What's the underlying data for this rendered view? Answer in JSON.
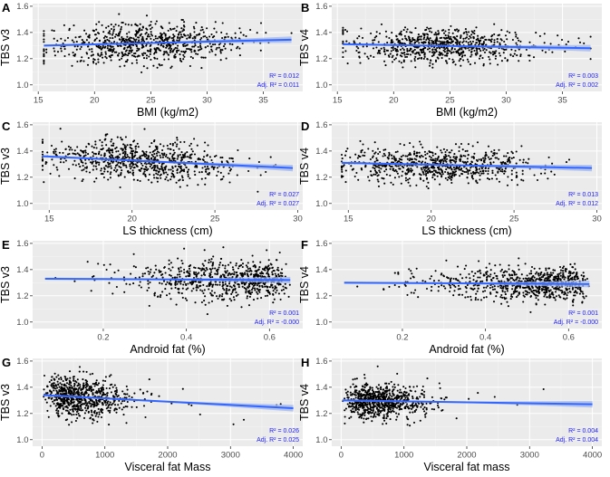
{
  "figure": {
    "colors": {
      "panel_bg": "#ebebeb",
      "grid_major": "#ffffff",
      "grid_minor": "#f4f4f4",
      "point": "#000000",
      "line": "#3366ff",
      "ribbon": "#9fb6f0",
      "annotation": "#1a1aff"
    }
  },
  "chart_data": [
    {
      "panel": "A",
      "type": "scatter",
      "ylabel": "TBS v3",
      "xlabel": "BMI (kg/m2)",
      "xlim": [
        14.5,
        38.5
      ],
      "ylim": [
        0.95,
        1.62
      ],
      "xticks": [
        15,
        20,
        25,
        30,
        35
      ],
      "yticks": [
        1.0,
        1.2,
        1.4,
        1.6
      ],
      "xtick_labels": [
        "15",
        "20",
        "25",
        "30",
        "35"
      ],
      "ytick_labels": [
        "1.0",
        "1.2",
        "1.4",
        "1.6"
      ],
      "fit": {
        "x": [
          15.5,
          37.5
        ],
        "y": [
          1.3,
          1.345
        ]
      },
      "r2": "R² = 0.012",
      "adj_r2": "Adj. R² = 0.011",
      "scatter": {
        "n": 750,
        "x_mean": 24.5,
        "x_sd": 4.2,
        "x_min": 15.5,
        "x_max": 37.5,
        "y_sd": 0.075
      }
    },
    {
      "panel": "B",
      "type": "scatter",
      "ylabel": "TBS v4",
      "xlabel": "BMI (kg/m2)",
      "xlim": [
        14.5,
        38.5
      ],
      "ylim": [
        0.95,
        1.62
      ],
      "xticks": [
        15,
        20,
        25,
        30,
        35
      ],
      "yticks": [
        1.0,
        1.2,
        1.4,
        1.6
      ],
      "xtick_labels": [
        "15",
        "20",
        "25",
        "30",
        "35"
      ],
      "ytick_labels": [
        "1.0",
        "1.2",
        "1.4",
        "1.6"
      ],
      "fit": {
        "x": [
          15.5,
          37.5
        ],
        "y": [
          1.31,
          1.28
        ]
      },
      "r2": "R² = 0.003",
      "adj_r2": "Adj. R² = 0.002",
      "scatter": {
        "n": 750,
        "x_mean": 24.5,
        "x_sd": 4.2,
        "x_min": 15.5,
        "x_max": 37.5,
        "y_sd": 0.065
      }
    },
    {
      "panel": "C",
      "type": "scatter",
      "ylabel": "TBS v3",
      "xlabel": "LS thickness (cm)",
      "xlim": [
        14.0,
        30.3
      ],
      "ylim": [
        0.95,
        1.62
      ],
      "xticks": [
        15,
        20,
        25,
        30
      ],
      "yticks": [
        1.0,
        1.2,
        1.4,
        1.6
      ],
      "xtick_labels": [
        "15",
        "20",
        "25",
        "30"
      ],
      "ytick_labels": [
        "1.0",
        "1.2",
        "1.4",
        "1.6"
      ],
      "fit": {
        "x": [
          14.6,
          29.7
        ],
        "y": [
          1.36,
          1.27
        ]
      },
      "r2": "R² = 0.027",
      "adj_r2": "Adj. R² = 0.027",
      "scatter": {
        "n": 750,
        "x_mean": 20.5,
        "x_sd": 2.8,
        "x_min": 14.6,
        "x_max": 29.7,
        "y_sd": 0.075
      }
    },
    {
      "panel": "D",
      "type": "scatter",
      "ylabel": "TBS v4",
      "xlabel": "LS thickness (cm)",
      "xlim": [
        14.0,
        30.3
      ],
      "ylim": [
        0.95,
        1.62
      ],
      "xticks": [
        15,
        20,
        25,
        30
      ],
      "yticks": [
        1.0,
        1.2,
        1.4,
        1.6
      ],
      "xtick_labels": [
        "15",
        "20",
        "25",
        "30"
      ],
      "ytick_labels": [
        "1.0",
        "1.2",
        "1.4",
        "1.6"
      ],
      "fit": {
        "x": [
          14.6,
          29.7
        ],
        "y": [
          1.31,
          1.27
        ]
      },
      "r2": "R² = 0.013",
      "adj_r2": "Adj. R² = 0.012",
      "scatter": {
        "n": 750,
        "x_mean": 20.5,
        "x_sd": 2.8,
        "x_min": 14.6,
        "x_max": 29.7,
        "y_sd": 0.065
      }
    },
    {
      "panel": "E",
      "type": "scatter",
      "ylabel": "TBS v3",
      "xlabel": "Android fat (%)",
      "xlim": [
        0.03,
        0.68
      ],
      "ylim": [
        0.95,
        1.62
      ],
      "xticks": [
        0.2,
        0.4,
        0.6
      ],
      "yticks": [
        1.0,
        1.2,
        1.4,
        1.6
      ],
      "xtick_labels": [
        "0.2",
        "0.4",
        "0.6"
      ],
      "ytick_labels": [
        "1.0",
        "1.2",
        "1.4",
        "1.6"
      ],
      "fit": {
        "x": [
          0.06,
          0.65
        ],
        "y": [
          1.33,
          1.32
        ]
      },
      "r2": "R² = 0.001",
      "adj_r2": "Adj. R² = -0.000",
      "scatter": {
        "n": 750,
        "x_mean": 0.46,
        "x_sd": 0.11,
        "x_min": 0.06,
        "x_max": 0.65,
        "y_sd": 0.075
      }
    },
    {
      "panel": "F",
      "type": "scatter",
      "ylabel": "TBS v4",
      "xlabel": "Android fat (%)",
      "xlim": [
        0.03,
        0.68
      ],
      "ylim": [
        0.95,
        1.62
      ],
      "xticks": [
        0.2,
        0.4,
        0.6
      ],
      "yticks": [
        1.0,
        1.2,
        1.4,
        1.6
      ],
      "xtick_labels": [
        "0.2",
        "0.4",
        "0.6"
      ],
      "ytick_labels": [
        "1.0",
        "1.2",
        "1.4",
        "1.6"
      ],
      "fit": {
        "x": [
          0.06,
          0.65
        ],
        "y": [
          1.3,
          1.29
        ]
      },
      "r2": "R² = 0.001",
      "adj_r2": "Adj. R² = -0.000",
      "scatter": {
        "n": 750,
        "x_mean": 0.46,
        "x_sd": 0.11,
        "x_min": 0.06,
        "x_max": 0.65,
        "y_sd": 0.065
      }
    },
    {
      "panel": "G",
      "type": "scatter",
      "ylabel": "TBS v3",
      "xlabel": "Visceral fat Mass",
      "xlim": [
        -150,
        4150
      ],
      "ylim": [
        0.95,
        1.62
      ],
      "xticks": [
        0,
        1000,
        2000,
        3000,
        4000
      ],
      "yticks": [
        1.0,
        1.2,
        1.4,
        1.6
      ],
      "xtick_labels": [
        "0",
        "1000",
        "2000",
        "3000",
        "4000"
      ],
      "ytick_labels": [
        "1.0",
        "1.2",
        "1.4",
        "1.6"
      ],
      "fit": {
        "x": [
          20,
          4000
        ],
        "y": [
          1.34,
          1.24
        ]
      },
      "r2": "R² = 0.026",
      "adj_r2": "Adj. R² = 0.025",
      "scatter": {
        "n": 750,
        "x_mean": 700,
        "x_sd": 520,
        "x_min": 20,
        "x_max": 4000,
        "y_sd": 0.075
      }
    },
    {
      "panel": "H",
      "type": "scatter",
      "ylabel": "TBS v4",
      "xlabel": "Visceral fat mass",
      "xlim": [
        -150,
        4150
      ],
      "ylim": [
        0.95,
        1.62
      ],
      "xticks": [
        0,
        1000,
        2000,
        3000,
        4000
      ],
      "yticks": [
        1.0,
        1.2,
        1.4,
        1.6
      ],
      "xtick_labels": [
        "0",
        "1000",
        "2000",
        "3000",
        "4000"
      ],
      "ytick_labels": [
        "1.0",
        "1.2",
        "1.4",
        "1.6"
      ],
      "fit": {
        "x": [
          20,
          4000
        ],
        "y": [
          1.3,
          1.27
        ]
      },
      "r2": "R² = 0.004",
      "adj_r2": "Adj. R² = 0.004",
      "scatter": {
        "n": 750,
        "x_mean": 700,
        "x_sd": 520,
        "x_min": 20,
        "x_max": 4000,
        "y_sd": 0.065
      }
    }
  ]
}
